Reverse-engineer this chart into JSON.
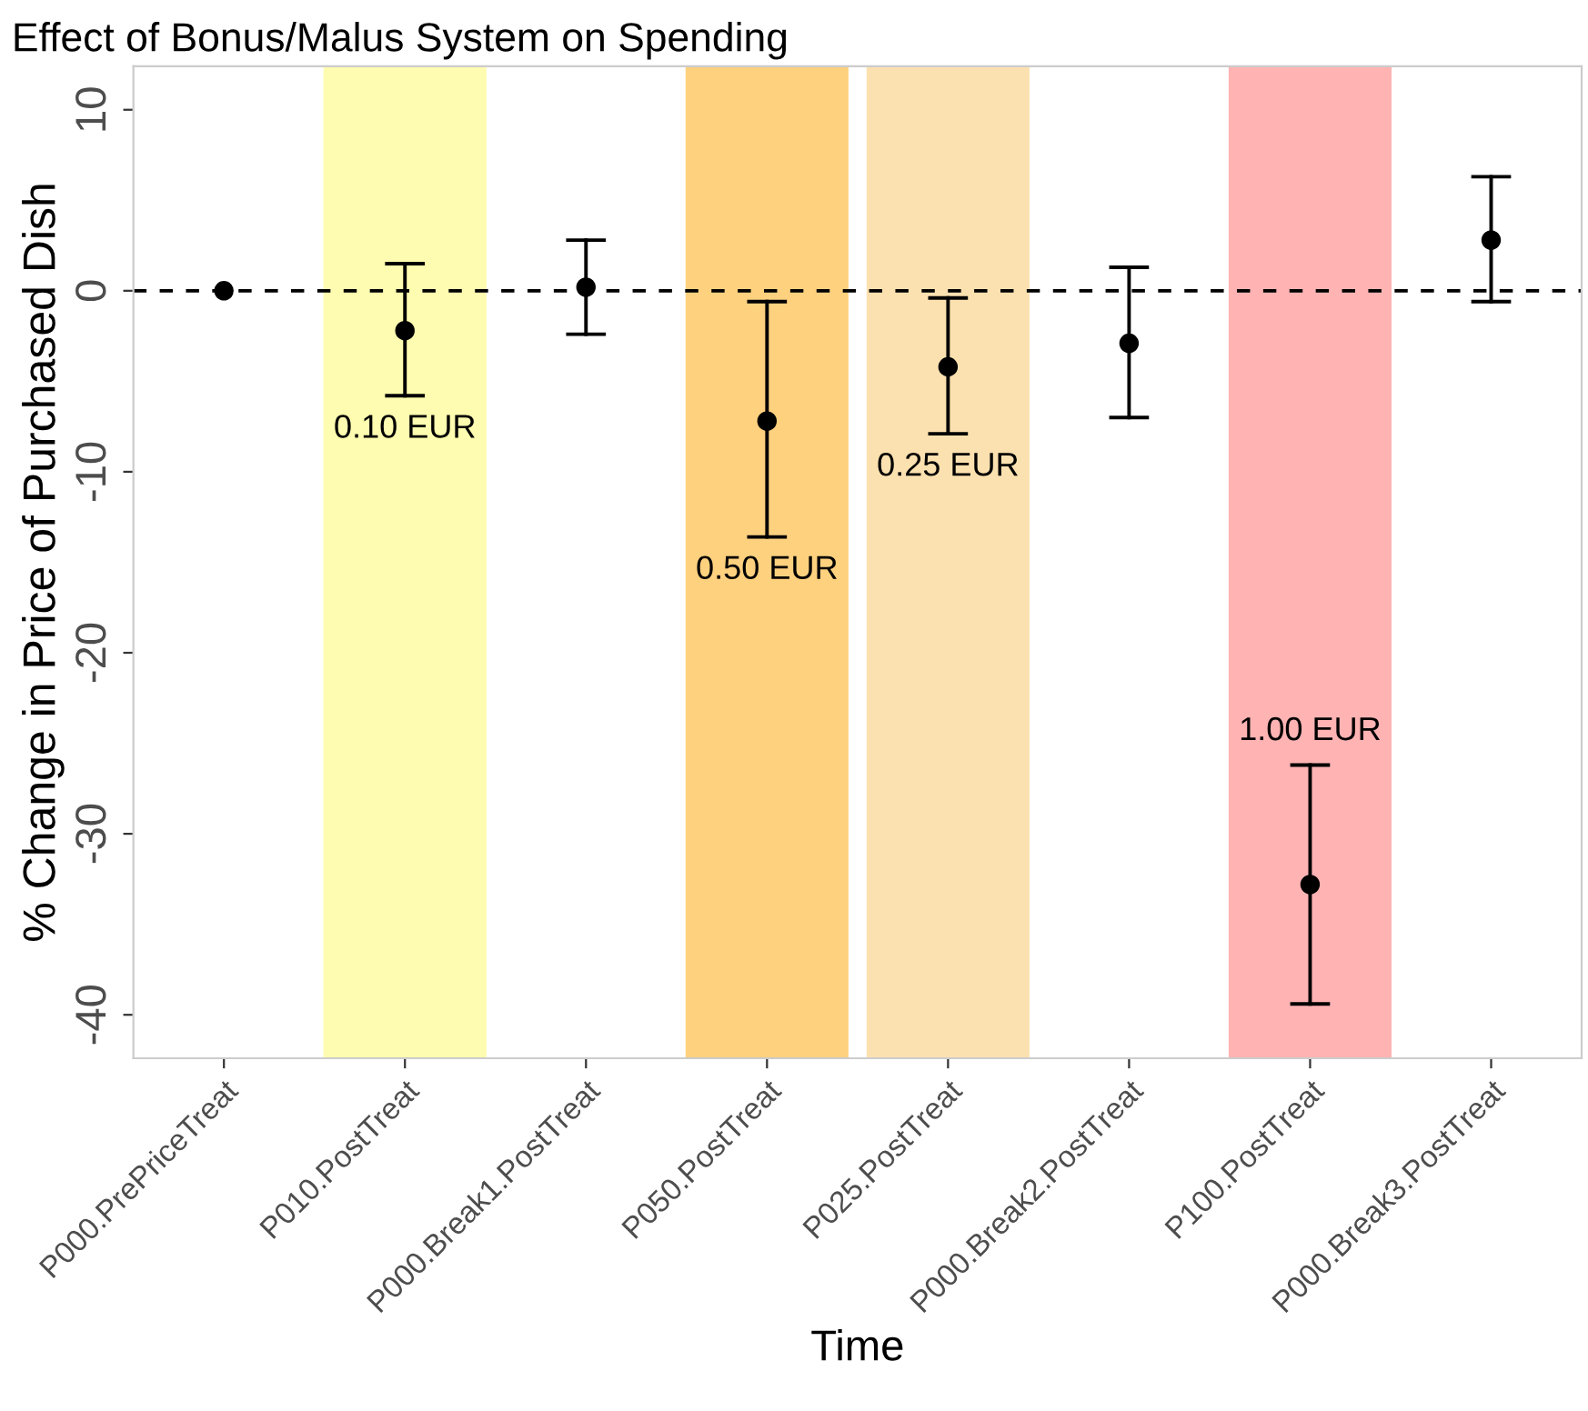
{
  "chart_data": {
    "type": "scatter",
    "title": "Effect of Bonus/Malus System on Spending",
    "xlabel": "Time",
    "ylabel": "% Change in Price of Purchased Dish",
    "categories": [
      "P000.PrePriceTreat",
      "P010.PostTreat",
      "P000.Break1.PostTreat",
      "P050.PostTreat",
      "P025.PostTreat",
      "P000.Break2.PostTreat",
      "P100.PostTreat",
      "P000.Break3.PostTreat"
    ],
    "series": [
      {
        "color": "#000000",
        "values": [
          0,
          -2.2,
          0.2,
          -7.2,
          -4.2,
          -2.9,
          -32.8,
          2.8
        ],
        "errors": [
          null,
          [
            -5.8,
            1.5
          ],
          [
            -2.4,
            2.8
          ],
          [
            -13.6,
            -0.6
          ],
          [
            -7.9,
            -0.4
          ],
          [
            -7.0,
            1.3
          ],
          [
            -39.4,
            -26.2
          ],
          [
            -0.6,
            6.3
          ]
        ]
      }
    ],
    "marker": "circle",
    "ylim": [
      -42.4,
      12.4
    ],
    "yticks": [
      -40,
      -30,
      -20,
      -10,
      0,
      10
    ],
    "grid": false,
    "legend": false,
    "ref_lines": [
      {
        "axis": "y",
        "value": 0,
        "color": "#000000",
        "line_style": "dashed"
      }
    ],
    "bands": [
      {
        "axis": "x",
        "from": "P010.PostTreat",
        "to": "P010.PostTreat",
        "color": "#fefcb0",
        "label": "0.10 EUR"
      },
      {
        "axis": "x",
        "from": "P050.PostTreat",
        "to": "P050.PostTreat",
        "color": "#fed17f",
        "label": "0.50 EUR"
      },
      {
        "axis": "x",
        "from": "P025.PostTreat",
        "to": "P025.PostTreat",
        "color": "#fce1b0",
        "label": "0.25 EUR"
      },
      {
        "axis": "x",
        "from": "P100.PostTreat",
        "to": "P100.PostTreat",
        "color": "#ffb3b3",
        "label": "1.00 EUR"
      }
    ]
  }
}
